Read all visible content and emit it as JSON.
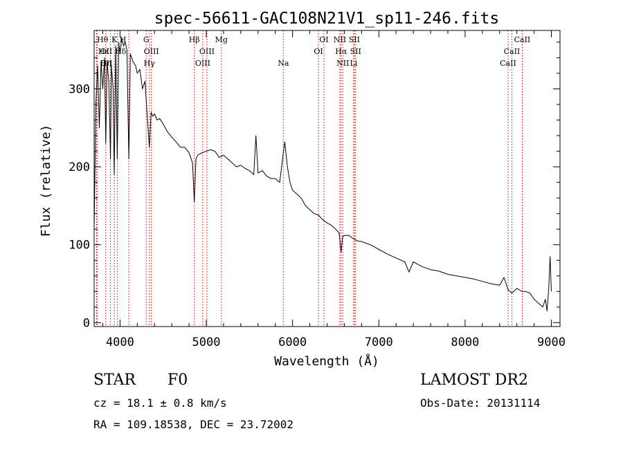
{
  "chart_data": {
    "type": "line",
    "title": "spec-56611-GAC108N21V1_sp11-246.fits",
    "xlabel": "Wavelength (Å)",
    "ylabel": "Flux (relative)",
    "xlim": [
      3700,
      9100
    ],
    "ylim": [
      -5,
      375
    ],
    "xticks": [
      4000,
      5000,
      6000,
      7000,
      8000,
      9000
    ],
    "xtick_labels": [
      "4000",
      "5000",
      "6000",
      "7000",
      "8000",
      "9000"
    ],
    "yticks": [
      0,
      100,
      200,
      300
    ],
    "ytick_labels": [
      "0",
      "100",
      "200",
      "300"
    ],
    "grid": false,
    "series": [
      {
        "x": [
          3700,
          3720,
          3740,
          3760,
          3780,
          3800,
          3820,
          3835,
          3850,
          3870,
          3889,
          3900,
          3920,
          3933,
          3950,
          3968,
          3985,
          4000,
          4020,
          4040,
          4060,
          4080,
          4102,
          4120,
          4150,
          4180,
          4200,
          4230,
          4260,
          4290,
          4310,
          4340,
          4360,
          4380,
          4400,
          4430,
          4460,
          4500,
          4550,
          4600,
          4650,
          4700,
          4750,
          4800,
          4840,
          4861,
          4880,
          4900,
          4950,
          5000,
          5050,
          5100,
          5150,
          5200,
          5250,
          5300,
          5350,
          5400,
          5450,
          5500,
          5550,
          5575,
          5600,
          5650,
          5700,
          5750,
          5800,
          5850,
          5890,
          5910,
          5940,
          5970,
          6000,
          6050,
          6100,
          6150,
          6200,
          6250,
          6300,
          6350,
          6400,
          6450,
          6500,
          6540,
          6563,
          6580,
          6600,
          6650,
          6700,
          6750,
          6800,
          6850,
          6900,
          6950,
          7000,
          7100,
          7200,
          7300,
          7350,
          7400,
          7500,
          7600,
          7700,
          7800,
          7900,
          8000,
          8100,
          8200,
          8300,
          8400,
          8450,
          8500,
          8542,
          8600,
          8662,
          8700,
          8750,
          8800,
          8850,
          8900,
          8930,
          8950,
          8970,
          8985,
          9000
        ],
        "values": [
          120,
          280,
          330,
          250,
          335,
          300,
          340,
          230,
          335,
          310,
          210,
          330,
          300,
          190,
          355,
          210,
          360,
          345,
          365,
          355,
          360,
          350,
          210,
          345,
          335,
          330,
          320,
          325,
          300,
          310,
          275,
          225,
          270,
          265,
          268,
          260,
          262,
          255,
          245,
          238,
          232,
          225,
          225,
          218,
          205,
          155,
          210,
          215,
          218,
          220,
          222,
          220,
          212,
          215,
          210,
          205,
          200,
          202,
          198,
          195,
          190,
          240,
          192,
          195,
          188,
          185,
          185,
          180,
          215,
          232,
          200,
          180,
          170,
          165,
          160,
          150,
          145,
          140,
          138,
          132,
          128,
          125,
          120,
          115,
          90,
          110,
          112,
          112,
          108,
          105,
          104,
          102,
          100,
          97,
          94,
          88,
          83,
          78,
          65,
          78,
          72,
          68,
          66,
          62,
          60,
          58,
          56,
          53,
          50,
          48,
          58,
          42,
          38,
          44,
          40,
          40,
          38,
          30,
          25,
          20,
          30,
          15,
          45,
          85,
          40
        ]
      }
    ],
    "lines": [
      {
        "label": "Hθ",
        "x": 3734,
        "row": 1,
        "dx": 8
      },
      {
        "label": "OII",
        "x": 3727,
        "row": 2,
        "dx": 14
      },
      {
        "label": "OII",
        "x": 3729,
        "row": 3,
        "dx": 14
      },
      {
        "label": "Hε",
        "x": 3889,
        "row": 2,
        "dx": -10
      },
      {
        "label": "K",
        "x": 3934,
        "row": 1,
        "dx": 0
      },
      {
        "label": "H",
        "x": 3969,
        "row": 1,
        "dx": 8
      },
      {
        "label": "Hδ",
        "x": 4102,
        "row": 2,
        "dx": -12
      },
      {
        "label": "Hη",
        "x": 3835,
        "row": 3,
        "dx": 0
      },
      {
        "label": "G",
        "x": 4304,
        "row": 1,
        "dx": 0
      },
      {
        "label": "OIII",
        "x": 4363,
        "row": 2,
        "dx": 0
      },
      {
        "label": "Hγ",
        "x": 4340,
        "row": 3,
        "dx": 0
      },
      {
        "label": "Hβ",
        "x": 4861,
        "row": 1,
        "dx": 0
      },
      {
        "label": "OIII",
        "x": 5007,
        "row": 2,
        "dx": 0
      },
      {
        "label": "OIII",
        "x": 4959,
        "row": 3,
        "dx": 0
      },
      {
        "label": "Mg",
        "x": 5175,
        "row": 1,
        "dx": 0
      },
      {
        "label": "Na",
        "x": 5893,
        "row": 3,
        "dx": 0
      },
      {
        "label": "OI",
        "x": 6363,
        "row": 1,
        "dx": 0
      },
      {
        "label": "OI",
        "x": 6300,
        "row": 2,
        "dx": 0
      },
      {
        "label": "NII",
        "x": 6548,
        "row": 1,
        "dx": 0
      },
      {
        "label": "Hα",
        "x": 6563,
        "row": 2,
        "dx": 0
      },
      {
        "label": "NII",
        "x": 6583,
        "row": 3,
        "dx": 0
      },
      {
        "label": "SII",
        "x": 6716,
        "row": 1,
        "dx": 0
      },
      {
        "label": "SII",
        "x": 6731,
        "row": 2,
        "dx": 0
      },
      {
        "label": "Li",
        "x": 6708,
        "row": 3,
        "dx": 0
      },
      {
        "label": "CaII",
        "x": 8662,
        "row": 1,
        "dx": 0
      },
      {
        "label": "CaII",
        "x": 8542,
        "row": 2,
        "dx": 0
      },
      {
        "label": "CaII",
        "x": 8498,
        "row": 3,
        "dx": 0
      }
    ],
    "colors": {
      "spectrum": "#000000",
      "lines": "#cc0000",
      "axes": "#000000"
    }
  },
  "info": {
    "class_label": "STAR",
    "subclass": "F0",
    "cz": "cz = 18.1 ± 0.8 km/s",
    "coords": "RA = 109.18538, DEC =  23.72002",
    "survey": "LAMOST DR2",
    "obs_date": "Obs-Date: 20131114"
  }
}
